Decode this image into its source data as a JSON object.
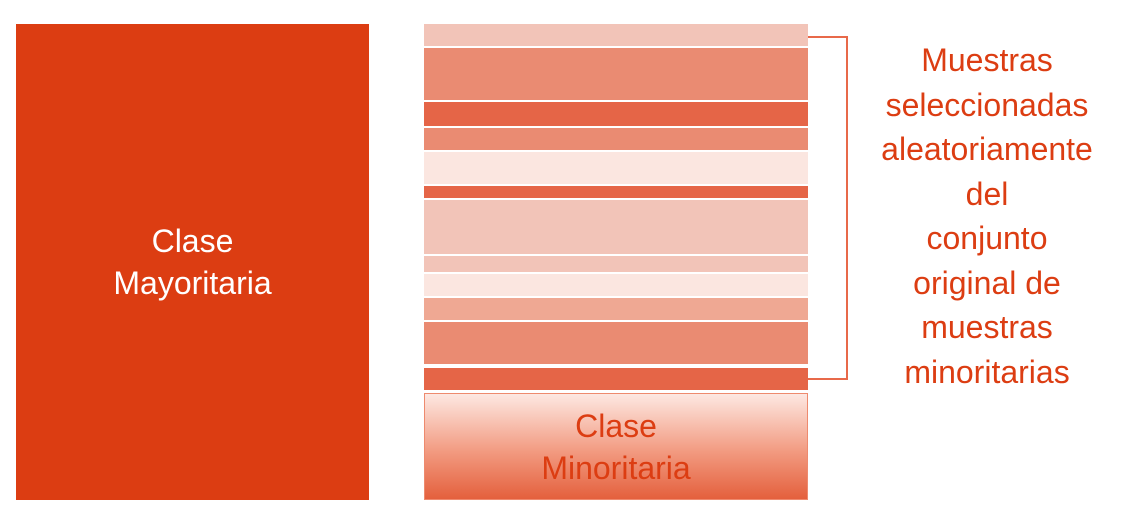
{
  "colors": {
    "majority": "#dc3d12",
    "text_accent": "#dc3d12",
    "bracket": "#e8694a"
  },
  "majority": {
    "line1": "Clase",
    "line2": "Mayoritaria"
  },
  "minority": {
    "line1": "Clase",
    "line2": "Minoritaria"
  },
  "samples_label": {
    "lines": [
      "Muestras",
      "seleccionadas",
      "aleatoriamente",
      "del",
      "conjunto",
      "original de",
      "muestras",
      "minoritarias"
    ]
  },
  "stripes": [
    {
      "color": "#f2c4b8"
    },
    {
      "color": "#ea8b72"
    },
    {
      "color": "#e56547"
    },
    {
      "color": "#ea8b72"
    },
    {
      "color": "#fbe6e0"
    },
    {
      "color": "#e56547"
    },
    {
      "color": "#f2c4b8"
    },
    {
      "color": "#f2c4b8"
    },
    {
      "color": "#fbe6e0"
    },
    {
      "color": "#efa893"
    },
    {
      "color": "#ea8b72"
    },
    {
      "color": "#e56547"
    }
  ]
}
